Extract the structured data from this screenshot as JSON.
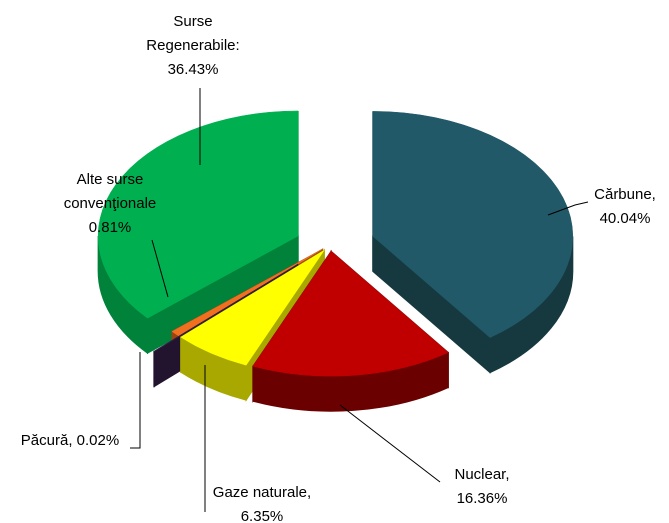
{
  "chart_data": {
    "type": "pie3d",
    "labels": [
      [
        "Cărbune,",
        "40.04%"
      ],
      [
        "Nuclear,",
        "16.36%"
      ],
      [
        "Gaze naturale,",
        "6.35%"
      ],
      [
        "Păcură, 0.02%"
      ],
      [
        "Alte surse",
        "convenţionale",
        "0.81%"
      ],
      [
        "Surse",
        "Regenerabile:",
        "36.43%"
      ]
    ],
    "values": [
      40.04,
      16.36,
      6.35,
      0.02,
      0.81,
      36.43
    ],
    "colors": [
      "#215968",
      "#c00000",
      "#ffff00",
      "#3b2552",
      "#f07020",
      "#00b050"
    ],
    "side_colors": [
      "#16393f",
      "#6a0000",
      "#a8a800",
      "#22142f",
      "#9a4410",
      "#00823b"
    ]
  }
}
